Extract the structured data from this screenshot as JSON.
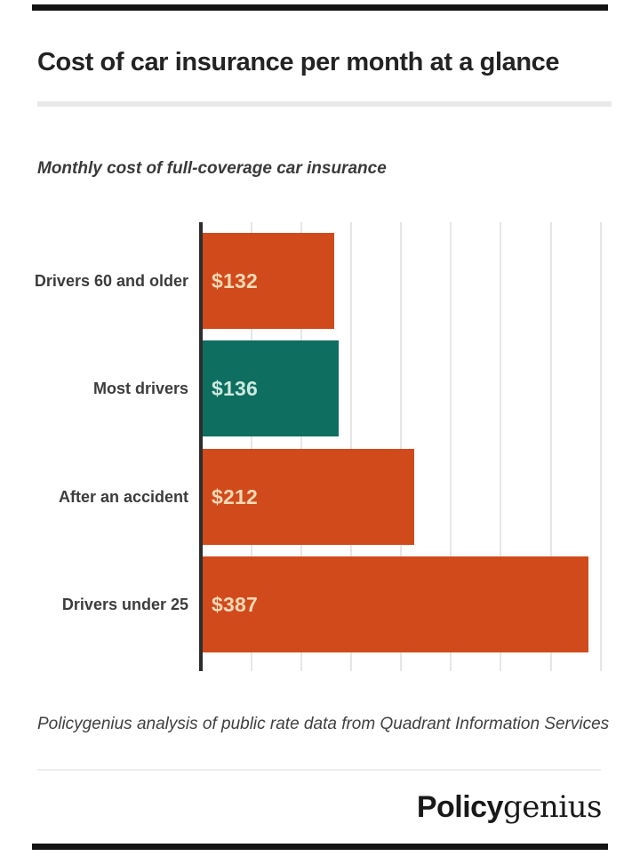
{
  "page": {
    "title": "Cost of car insurance per month at a glance",
    "subtitle": "Monthly cost of full-coverage car insurance",
    "source_note": "Policygenius analysis of public rate data from Quadrant Information Services",
    "logo": {
      "bold": "Policy",
      "serif": "genius"
    }
  },
  "colors": {
    "brand_orange": "#d14a1b",
    "brand_teal": "#0e6e5f",
    "rule_black": "#141414",
    "axis_line": "#2d2d2d",
    "gridline": "#e6e6e6",
    "divider_gray": "#e9e9e9",
    "title_text": "#232323",
    "label_text": "#3c3c3c",
    "value_text_on_orange": "#f7d9b6",
    "value_text_on_teal": "#cde9e0"
  },
  "chart_data": {
    "type": "bar",
    "orientation": "horizontal",
    "title": "Monthly cost of full-coverage car insurance",
    "xlabel": "",
    "ylabel": "",
    "categories": [
      "Drivers 60 and older",
      "Most drivers",
      "After an accident",
      "Drivers under 25"
    ],
    "values": [
      132,
      136,
      212,
      387
    ],
    "value_labels": [
      "$132",
      "$136",
      "$212",
      "$387"
    ],
    "bar_colors": [
      "#d14a1b",
      "#0e6e5f",
      "#d14a1b",
      "#d14a1b"
    ],
    "value_label_colors": [
      "#f7d9b6",
      "#cde9e0",
      "#f7d9b6",
      "#f7d9b6"
    ],
    "xlim": [
      0,
      410
    ],
    "gridline_interval": 50,
    "grid": true,
    "legend": false
  }
}
